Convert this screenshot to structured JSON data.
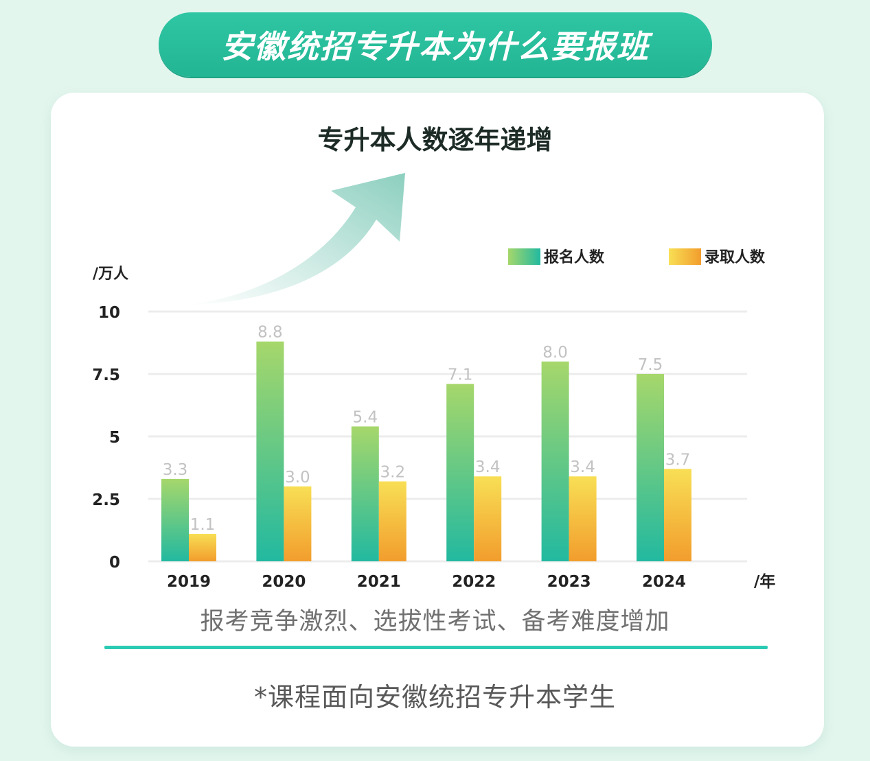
{
  "banner": {
    "title": "安徽统招专升本为什么要报班"
  },
  "chart_data": {
    "type": "bar",
    "title": "专升本人数逐年递增",
    "ylabel": "/万人",
    "xlabel": "/年",
    "categories": [
      "2019",
      "2020",
      "2021",
      "2022",
      "2023",
      "2024"
    ],
    "series": [
      {
        "name": "报名人数",
        "values": [
          3.3,
          8.8,
          5.4,
          7.1,
          8.0,
          7.5
        ],
        "labels": [
          "3.3",
          "8.8",
          "5.4",
          "7.1",
          "8.0",
          "7.5"
        ]
      },
      {
        "name": "录取人数",
        "values": [
          1.1,
          3.0,
          3.2,
          3.4,
          3.4,
          3.7
        ],
        "labels": [
          "1.1",
          "3.0",
          "3.2",
          "3.4",
          "3.4",
          "3.7"
        ]
      }
    ],
    "yticks": [
      "0",
      "2.5",
      "5",
      "7.5",
      "10"
    ],
    "ylim": [
      0,
      10
    ],
    "grid": true,
    "legend_position": "top-right",
    "colors": {
      "applicants_top": "#a6d76b",
      "applicants_bottom": "#22b9a0",
      "admitted_top": "#f8df55",
      "admitted_bottom": "#f29d2d",
      "data_label": "#c2c2c2"
    }
  },
  "subtitle": "报考竞争激烈、选拔性考试、备考难度增加",
  "footnote": "*课程面向安徽统招专升本学生"
}
